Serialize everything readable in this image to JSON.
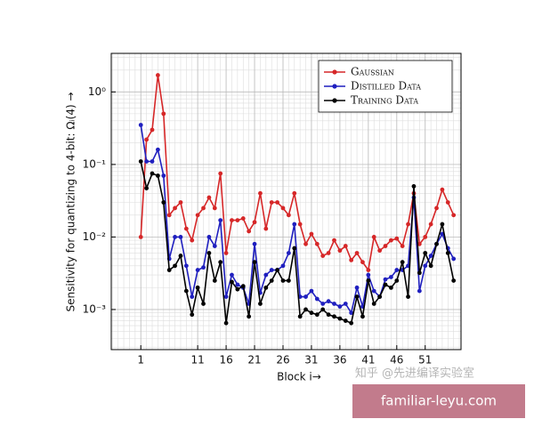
{
  "chart_data": {
    "type": "line",
    "xlabel": "Block i→",
    "ylabel": "Sensitivity for quantizing to 4-bit: Ωᵢ(4) →",
    "x": [
      1,
      2,
      3,
      4,
      5,
      6,
      7,
      8,
      9,
      10,
      11,
      12,
      13,
      14,
      15,
      16,
      17,
      18,
      19,
      20,
      21,
      22,
      23,
      24,
      25,
      26,
      27,
      28,
      29,
      30,
      31,
      32,
      33,
      34,
      35,
      36,
      37,
      38,
      39,
      40,
      41,
      42,
      43,
      44,
      45,
      46,
      47,
      48,
      49,
      50,
      51,
      52,
      53,
      54,
      55,
      56
    ],
    "xlim": [
      -4.2,
      57.3
    ],
    "xticks": [
      1,
      11,
      16,
      21,
      26,
      31,
      36,
      41,
      46,
      51
    ],
    "ylim": [
      0.00028,
      3.4
    ],
    "log_y": true,
    "yticks": [
      {
        "value": 1,
        "label": "10⁰"
      },
      {
        "value": 0.1,
        "label": "10⁻¹"
      },
      {
        "value": 0.01,
        "label": "10⁻²"
      },
      {
        "value": 0.001,
        "label": "10⁻³"
      }
    ],
    "grid": true,
    "legend": "top-right",
    "series": [
      {
        "name": "Gaussian",
        "color": "#d62728",
        "values": [
          0.01,
          0.22,
          0.3,
          1.7,
          0.5,
          0.02,
          0.025,
          0.03,
          0.013,
          0.009,
          0.02,
          0.025,
          0.035,
          0.025,
          0.075,
          0.006,
          0.017,
          0.017,
          0.018,
          0.012,
          0.016,
          0.04,
          0.013,
          0.03,
          0.03,
          0.025,
          0.02,
          0.04,
          0.015,
          0.008,
          0.011,
          0.008,
          0.0055,
          0.006,
          0.009,
          0.0065,
          0.0075,
          0.0048,
          0.006,
          0.0045,
          0.0035,
          0.01,
          0.0065,
          0.0075,
          0.009,
          0.0095,
          0.0075,
          0.015,
          0.04,
          0.008,
          0.01,
          0.015,
          0.025,
          0.045,
          0.03,
          0.02
        ]
      },
      {
        "name": "Distilled Data",
        "color": "#1f1fbf",
        "values": [
          0.35,
          0.11,
          0.11,
          0.16,
          0.07,
          0.005,
          0.01,
          0.01,
          0.004,
          0.0015,
          0.0035,
          0.0038,
          0.01,
          0.0075,
          0.017,
          0.0015,
          0.003,
          0.0022,
          0.002,
          0.0012,
          0.008,
          0.0017,
          0.003,
          0.0035,
          0.0035,
          0.004,
          0.006,
          0.015,
          0.0015,
          0.0015,
          0.0018,
          0.0014,
          0.0012,
          0.0013,
          0.0012,
          0.0011,
          0.0012,
          0.0009,
          0.002,
          0.0011,
          0.003,
          0.0018,
          0.0015,
          0.0026,
          0.0028,
          0.0035,
          0.0035,
          0.004,
          0.035,
          0.0018,
          0.004,
          0.0055,
          0.008,
          0.011,
          0.007,
          0.005
        ]
      },
      {
        "name": "Training Data",
        "color": "#000000",
        "values": [
          0.11,
          0.047,
          0.075,
          0.07,
          0.03,
          0.0035,
          0.004,
          0.0055,
          0.0018,
          0.00085,
          0.002,
          0.0012,
          0.006,
          0.0025,
          0.0045,
          0.00065,
          0.0024,
          0.0019,
          0.0021,
          0.0008,
          0.0045,
          0.0012,
          0.002,
          0.0025,
          0.0035,
          0.0025,
          0.0025,
          0.007,
          0.0008,
          0.001,
          0.0009,
          0.00085,
          0.001,
          0.00085,
          0.0008,
          0.00075,
          0.0007,
          0.00065,
          0.0015,
          0.0008,
          0.0025,
          0.0012,
          0.0015,
          0.0022,
          0.002,
          0.0025,
          0.0045,
          0.0015,
          0.05,
          0.0032,
          0.006,
          0.004,
          0.008,
          0.015,
          0.006,
          0.0025
        ]
      }
    ],
    "annotations": [
      "知乎 @先进编译实验室",
      "familiar-leyu.com"
    ]
  }
}
